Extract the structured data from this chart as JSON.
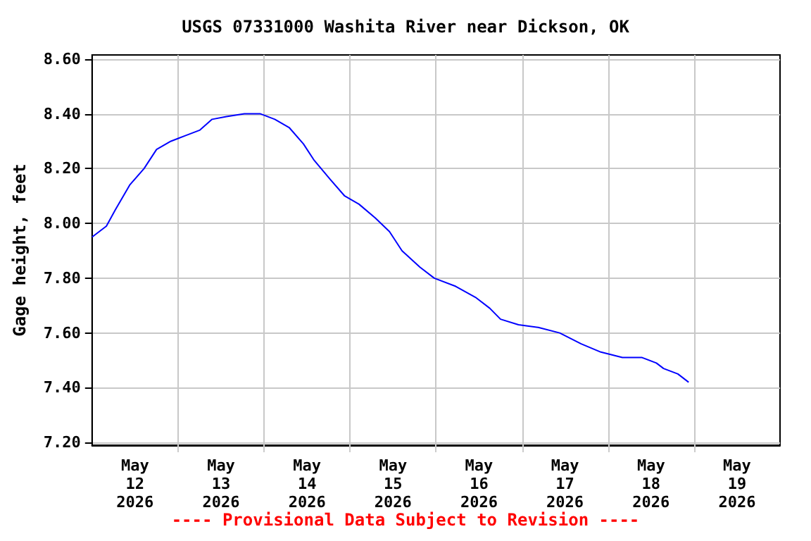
{
  "chart_data": {
    "type": "line",
    "title": "USGS 07331000 Washita River near Dickson, OK",
    "ylabel": "Gage height, feet",
    "annotations": [
      "---- Provisional Data Subject to Revision ----"
    ],
    "x": [
      "2026-05-12T00:00",
      "2026-05-12T04:00",
      "2026-05-12T06:30",
      "2026-05-12T10:30",
      "2026-05-12T14:30",
      "2026-05-12T18:00",
      "2026-05-12T22:00",
      "2026-05-13T02:00",
      "2026-05-13T06:00",
      "2026-05-13T09:30",
      "2026-05-13T13:30",
      "2026-05-13T18:30",
      "2026-05-13T23:00",
      "2026-05-14T03:00",
      "2026-05-14T07:00",
      "2026-05-14T11:00",
      "2026-05-14T14:00",
      "2026-05-14T18:30",
      "2026-05-14T22:30",
      "2026-05-15T02:30",
      "2026-05-15T07:00",
      "2026-05-15T11:00",
      "2026-05-15T14:30",
      "2026-05-15T19:30",
      "2026-05-15T23:30",
      "2026-05-16T05:30",
      "2026-05-16T11:00",
      "2026-05-16T15:00",
      "2026-05-16T18:00",
      "2026-05-16T23:00",
      "2026-05-17T04:30",
      "2026-05-17T10:30",
      "2026-05-17T16:30",
      "2026-05-17T22:00",
      "2026-05-18T04:00",
      "2026-05-18T09:30",
      "2026-05-18T13:30",
      "2026-05-18T15:30",
      "2026-05-18T19:30",
      "2026-05-18T22:30"
    ],
    "series": [
      {
        "color": "#0000ff",
        "values": [
          7.95,
          7.99,
          8.05,
          8.14,
          8.2,
          8.27,
          8.3,
          8.32,
          8.34,
          8.38,
          8.39,
          8.4,
          8.4,
          8.38,
          8.35,
          8.29,
          8.23,
          8.16,
          8.1,
          8.07,
          8.02,
          7.97,
          7.9,
          7.84,
          7.8,
          7.77,
          7.73,
          7.69,
          7.65,
          7.63,
          7.62,
          7.6,
          7.56,
          7.53,
          7.51,
          7.51,
          7.49,
          7.47,
          7.45,
          7.42
        ]
      }
    ],
    "xlim": [
      "2026-05-12T00:00",
      "2026-05-20T00:00"
    ],
    "xticks": [
      {
        "value": "2026-05-12T12:00",
        "label": "May\n12\n2026"
      },
      {
        "value": "2026-05-13T00:00",
        "label": null
      },
      {
        "value": "2026-05-13T12:00",
        "label": "May\n13\n2026"
      },
      {
        "value": "2026-05-14T00:00",
        "label": null
      },
      {
        "value": "2026-05-14T12:00",
        "label": "May\n14\n2026"
      },
      {
        "value": "2026-05-15T00:00",
        "label": null
      },
      {
        "value": "2026-05-15T12:00",
        "label": "May\n15\n2026"
      },
      {
        "value": "2026-05-16T00:00",
        "label": null
      },
      {
        "value": "2026-05-16T12:00",
        "label": "May\n16\n2026"
      },
      {
        "value": "2026-05-17T00:00",
        "label": null
      },
      {
        "value": "2026-05-17T12:00",
        "label": "May\n17\n2026"
      },
      {
        "value": "2026-05-18T00:00",
        "label": null
      },
      {
        "value": "2026-05-18T12:00",
        "label": "May\n18\n2026"
      },
      {
        "value": "2026-05-19T00:00",
        "label": null
      },
      {
        "value": "2026-05-19T12:00",
        "label": "May\n19\n2026"
      }
    ],
    "ylim": [
      7.19,
      8.615
    ],
    "yticks": [
      {
        "value": 7.2,
        "label": "7.20"
      },
      {
        "value": 7.4,
        "label": "7.40"
      },
      {
        "value": 7.6,
        "label": "7.60"
      },
      {
        "value": 7.8,
        "label": "7.80"
      },
      {
        "value": 8.0,
        "label": "8.00"
      },
      {
        "value": 8.2,
        "label": "8.20"
      },
      {
        "value": 8.4,
        "label": "8.40"
      },
      {
        "value": 8.6,
        "label": "8.60"
      }
    ],
    "grid": true,
    "marker": "none",
    "line_style": "solid"
  }
}
